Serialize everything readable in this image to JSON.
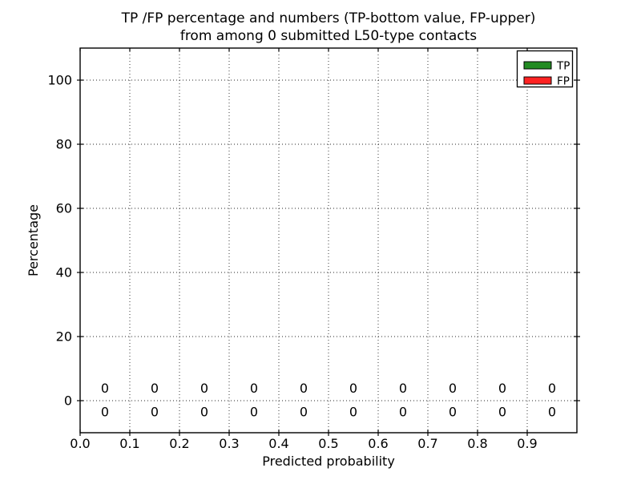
{
  "chart_data": {
    "type": "bar",
    "title_lines": [
      "TP /FP percentage and numbers (TP-bottom value, FP-upper)",
      "from among 0 submitted L50-type contacts"
    ],
    "xlabel": "Predicted probability",
    "ylabel": "Percentage",
    "xlim": [
      0.0,
      1.0
    ],
    "ylim": [
      -10,
      110
    ],
    "xticks": [
      0.0,
      0.1,
      0.2,
      0.3,
      0.4,
      0.5,
      0.6,
      0.7,
      0.8,
      0.9
    ],
    "xtick_labels": [
      "0.0",
      "0.1",
      "0.2",
      "0.3",
      "0.4",
      "0.5",
      "0.6",
      "0.7",
      "0.8",
      "0.9"
    ],
    "yticks": [
      0,
      20,
      40,
      60,
      80,
      100
    ],
    "ytick_labels": [
      "0",
      "20",
      "40",
      "60",
      "80",
      "100"
    ],
    "bin_centers": [
      0.05,
      0.15,
      0.25,
      0.35,
      0.45,
      0.55,
      0.65,
      0.75,
      0.85,
      0.95
    ],
    "series": [
      {
        "name": "TP",
        "color": "#228b22",
        "values": [
          0,
          0,
          0,
          0,
          0,
          0,
          0,
          0,
          0,
          0
        ],
        "count_labels": [
          "0",
          "0",
          "0",
          "0",
          "0",
          "0",
          "0",
          "0",
          "0",
          "0"
        ],
        "label_row": "bottom"
      },
      {
        "name": "FP",
        "color": "#ff2222",
        "values": [
          0,
          0,
          0,
          0,
          0,
          0,
          0,
          0,
          0,
          0
        ],
        "count_labels": [
          "0",
          "0",
          "0",
          "0",
          "0",
          "0",
          "0",
          "0",
          "0",
          "0"
        ],
        "label_row": "upper"
      }
    ],
    "grid": true,
    "grid_line_style": "dotted",
    "legend_position": "upper right"
  }
}
